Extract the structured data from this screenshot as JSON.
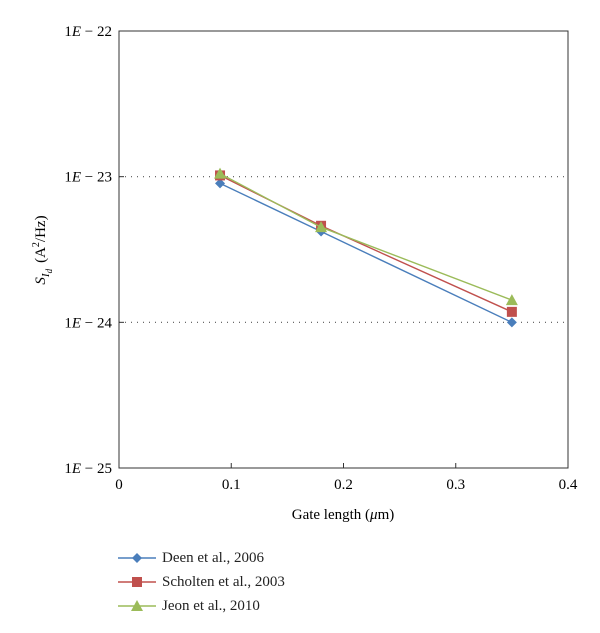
{
  "chart_data": {
    "type": "line",
    "xlabel_prefix": "Gate length (",
    "xlabel_mu": "μ",
    "xlabel_suffix": "m)",
    "ylabel_main": "S",
    "ylabel_sub1": "I",
    "ylabel_sub2": "d",
    "ylabel_units_prefix": "(A",
    "ylabel_units_sup": "2",
    "ylabel_units_suffix": "/Hz)",
    "xlim": [
      0,
      0.4
    ],
    "ylim": [
      1e-25,
      1e-22
    ],
    "yscale": "log",
    "x_ticks": [
      0,
      0.1,
      0.2,
      0.3,
      0.4
    ],
    "x_tick_labels": [
      "0",
      "0.1",
      "0.2",
      "0.3",
      "0.4"
    ],
    "y_ticks": [
      1e-25,
      1e-24,
      1e-23,
      1e-22
    ],
    "y_tick_labels": [
      "1E − 25",
      "1E − 24",
      "1E − 23",
      "1E − 22"
    ],
    "gridlines_y": [
      1e-24,
      1e-23
    ],
    "legend_position": "bottom-left, below plot",
    "series": [
      {
        "name": "Deen et al., 2006",
        "color": "#4a7ebb",
        "marker": "diamond",
        "x": [
          0.09,
          0.18,
          0.35
        ],
        "y": [
          9e-24,
          4.2e-24,
          1e-24
        ]
      },
      {
        "name": "Scholten et al., 2003",
        "color": "#c0504d",
        "marker": "square",
        "x": [
          0.09,
          0.18,
          0.35
        ],
        "y": [
          1.02e-23,
          4.6e-24,
          1.18e-24
        ]
      },
      {
        "name": "Jeon et al., 2010",
        "color": "#9bbb59",
        "marker": "triangle",
        "x": [
          0.09,
          0.18,
          0.35
        ],
        "y": [
          1.05e-23,
          4.5e-24,
          1.42e-24
        ]
      }
    ]
  }
}
